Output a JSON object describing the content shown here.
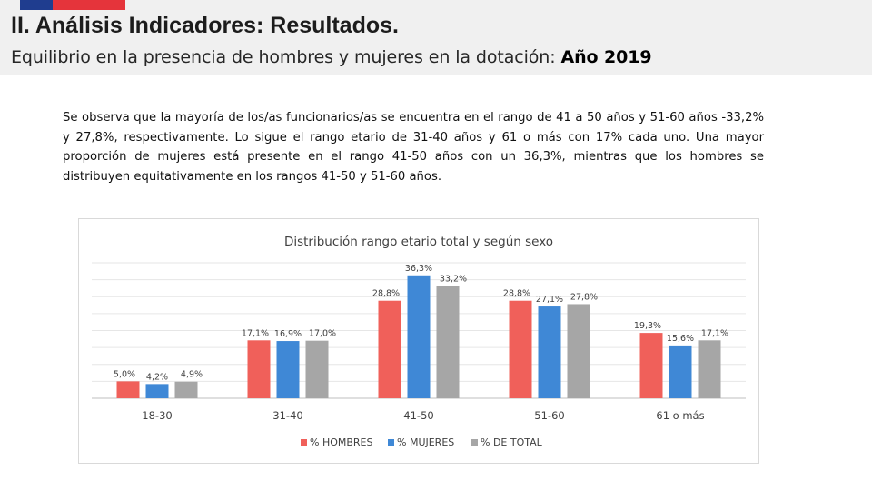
{
  "header": {
    "title": "II. Análisis Indicadores: Resultados.",
    "subtitle_prefix": "Equilibrio en la presencia de hombres y mujeres en la dotación:",
    "subtitle_year": "Año 2019",
    "flag_colors": [
      "#1f3d8f",
      "#e5343b"
    ]
  },
  "body": {
    "paragraph": "Se observa que la mayoría de los/as funcionarios/as se encuentra en el rango de 41 a 50 años y 51-60 años -33,2% y 27,8%, respectivamente. Lo sigue el rango etario de 31-40 años y 61 o más con 17% cada uno. Una mayor proporción de mujeres está presente en el rango 41-50 años con un 36,3%, mientras que los hombres se distribuyen equitativamente en los rangos 41-50 y 51-60 años."
  },
  "chart_data": {
    "type": "bar",
    "title": "Distribución rango etario total y según sexo",
    "categories": [
      "18-30",
      "31-40",
      "41-50",
      "51-60",
      "61 o más"
    ],
    "series": [
      {
        "name": "% HOMBRES",
        "color": "#f0605a",
        "values": [
          5.0,
          17.1,
          28.8,
          28.8,
          19.3
        ],
        "labels": [
          "5,0%",
          "17,1%",
          "28,8%",
          "28,8%",
          "19,3%"
        ]
      },
      {
        "name": "% MUJERES",
        "color": "#3f88d6",
        "values": [
          4.2,
          16.9,
          36.3,
          27.1,
          15.6
        ],
        "labels": [
          "4,2%",
          "16,9%",
          "36,3%",
          "27,1%",
          "15,6%"
        ]
      },
      {
        "name": "% DE TOTAL",
        "color": "#a6a6a6",
        "values": [
          4.9,
          17.0,
          33.2,
          27.8,
          17.1
        ],
        "labels": [
          "4,9%",
          "17,0%",
          "33,2%",
          "27,8%",
          "17,1%"
        ]
      }
    ],
    "xlabel": "",
    "ylabel": "",
    "ylim": [
      0,
      40
    ],
    "gridlines": true,
    "legend": "bottom"
  }
}
